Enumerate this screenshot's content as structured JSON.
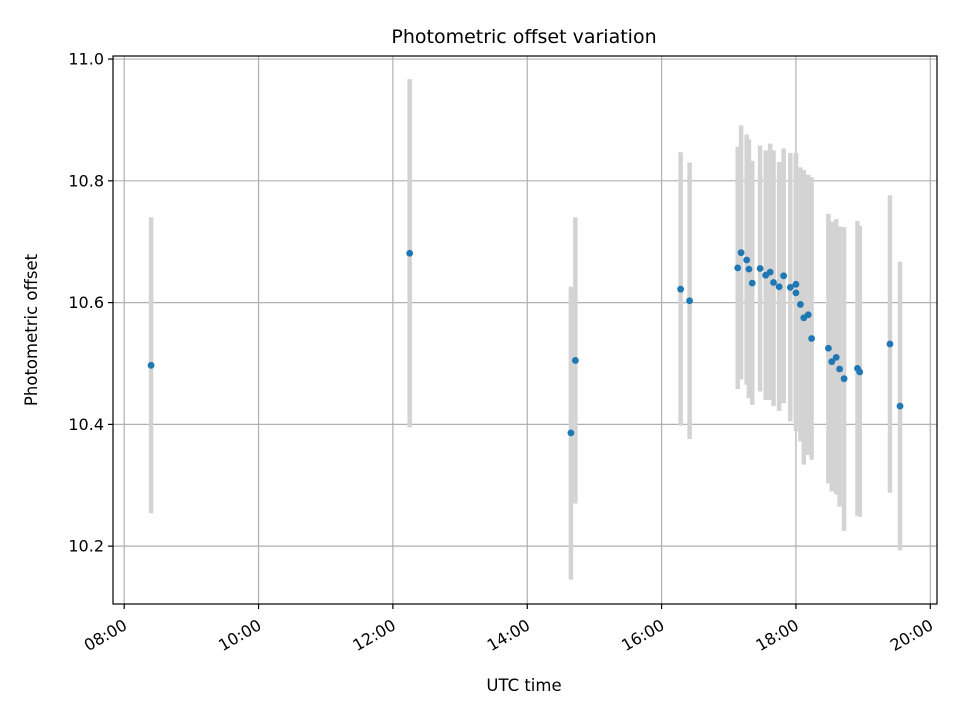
{
  "chart_data": {
    "type": "scatter",
    "title": "Photometric offset variation",
    "xlabel": "UTC time",
    "ylabel": "Photometric offset",
    "x_ticks": [
      "08:00",
      "10:00",
      "12:00",
      "14:00",
      "16:00",
      "18:00",
      "20:00"
    ],
    "y_ticks": [
      "10.2",
      "10.4",
      "10.6",
      "10.8",
      "11.0"
    ],
    "xlim": [
      "07:50",
      "20:06"
    ],
    "ylim": [
      10.105,
      11.005
    ],
    "grid": true,
    "colors": {
      "marker": "#1f77b4",
      "errorbar": "#d3d3d3",
      "grid": "#b0b0b0",
      "axis": "#000000"
    },
    "points": [
      {
        "t": "08:24",
        "y": 10.497,
        "lo": 10.254,
        "hi": 10.74
      },
      {
        "t": "12:15",
        "y": 10.681,
        "lo": 10.395,
        "hi": 10.967
      },
      {
        "t": "14:39",
        "y": 10.386,
        "lo": 10.145,
        "hi": 10.626
      },
      {
        "t": "14:43",
        "y": 10.505,
        "lo": 10.27,
        "hi": 10.74
      },
      {
        "t": "16:17",
        "y": 10.622,
        "lo": 10.398,
        "hi": 10.847
      },
      {
        "t": "16:25",
        "y": 10.603,
        "lo": 10.376,
        "hi": 10.83
      },
      {
        "t": "17:08",
        "y": 10.657,
        "lo": 10.458,
        "hi": 10.856
      },
      {
        "t": "17:11",
        "y": 10.682,
        "lo": 10.474,
        "hi": 10.891
      },
      {
        "t": "17:16",
        "y": 10.67,
        "lo": 10.465,
        "hi": 10.876
      },
      {
        "t": "17:18",
        "y": 10.655,
        "lo": 10.443,
        "hi": 10.868
      },
      {
        "t": "17:21",
        "y": 10.632,
        "lo": 10.432,
        "hi": 10.833
      },
      {
        "t": "17:28",
        "y": 10.656,
        "lo": 10.454,
        "hi": 10.858
      },
      {
        "t": "17:33",
        "y": 10.645,
        "lo": 10.44,
        "hi": 10.85
      },
      {
        "t": "17:37",
        "y": 10.65,
        "lo": 10.44,
        "hi": 10.861
      },
      {
        "t": "17:40",
        "y": 10.633,
        "lo": 10.43,
        "hi": 10.85
      },
      {
        "t": "17:45",
        "y": 10.626,
        "lo": 10.422,
        "hi": 10.831
      },
      {
        "t": "17:49",
        "y": 10.644,
        "lo": 10.435,
        "hi": 10.853
      },
      {
        "t": "17:55",
        "y": 10.625,
        "lo": 10.405,
        "hi": 10.846
      },
      {
        "t": "18:00",
        "y": 10.63,
        "lo": 10.414,
        "hi": 10.846
      },
      {
        "t": "18:00",
        "y": 10.616,
        "lo": 10.389,
        "hi": 10.842
      },
      {
        "t": "18:04",
        "y": 10.597,
        "lo": 10.372,
        "hi": 10.822
      },
      {
        "t": "18:07",
        "y": 10.575,
        "lo": 10.334,
        "hi": 10.818
      },
      {
        "t": "18:11",
        "y": 10.58,
        "lo": 10.35,
        "hi": 10.81
      },
      {
        "t": "18:14",
        "y": 10.541,
        "lo": 10.342,
        "hi": 10.806
      },
      {
        "t": "18:29",
        "y": 10.525,
        "lo": 10.303,
        "hi": 10.746
      },
      {
        "t": "18:32",
        "y": 10.503,
        "lo": 10.29,
        "hi": 10.733
      },
      {
        "t": "18:36",
        "y": 10.51,
        "lo": 10.285,
        "hi": 10.737
      },
      {
        "t": "18:39",
        "y": 10.491,
        "lo": 10.265,
        "hi": 10.725
      },
      {
        "t": "18:43",
        "y": 10.475,
        "lo": 10.225,
        "hi": 10.724
      },
      {
        "t": "18:55",
        "y": 10.492,
        "lo": 10.25,
        "hi": 10.734
      },
      {
        "t": "18:57",
        "y": 10.486,
        "lo": 10.248,
        "hi": 10.726
      },
      {
        "t": "19:24",
        "y": 10.532,
        "lo": 10.288,
        "hi": 10.776
      },
      {
        "t": "19:33",
        "y": 10.43,
        "lo": 10.193,
        "hi": 10.667
      }
    ]
  }
}
